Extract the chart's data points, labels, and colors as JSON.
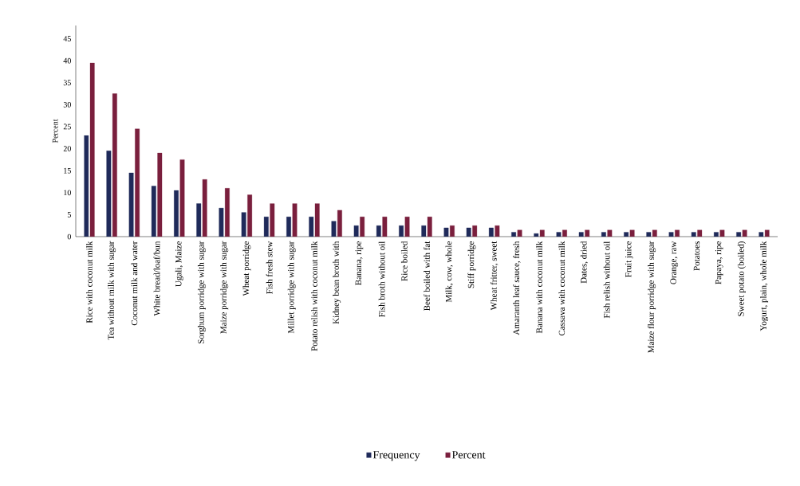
{
  "chart_data": {
    "type": "bar",
    "ylabel": "Percent",
    "categories": [
      "Rice with coconut milk",
      "Tea without milk with sugar",
      "Coconut milk and water",
      "White bread/loaf/bun",
      "Ugali, Maize",
      "Sorghum porridge with sugar",
      "Maize porridge with sugar",
      "Wheat porridge",
      "Fish fresh stew",
      "Millet porridge with sugar",
      "Potato relish with coconut milk",
      "Kidney bean broth with",
      "Banana, ripe",
      "Fish broth without oil",
      "Rice boiled",
      "Beef boiled with fat",
      "Milk, cow, whole",
      "Stiff porridge",
      "Wheat fritter, sweet",
      "Amaranth leaf sauce, fresh",
      "Banana with coconut milk",
      "Cassava with coconut milk",
      "Dates, dried",
      "Fish relish without oil",
      "Fruit juice",
      "Maize flour porridge with sugar",
      "Orange, raw",
      "Potatoes",
      "Papaya, ripe",
      "Sweet potato (boiled)",
      "Yogurt, plain, whole milk"
    ],
    "series": [
      {
        "name": "Frequency",
        "color": "#1f2a5a",
        "values": [
          23,
          19.5,
          14.5,
          11.5,
          10.5,
          7.5,
          6.5,
          5.5,
          4.5,
          4.5,
          4.5,
          3.5,
          2.5,
          2.5,
          2.5,
          2.5,
          2,
          2,
          2,
          1,
          0.7,
          1,
          1,
          1,
          1,
          1,
          1,
          1,
          1,
          1,
          1
        ]
      },
      {
        "name": "Percent",
        "color": "#7a1f3d",
        "values": [
          39.5,
          32.5,
          24.5,
          19,
          17.5,
          13,
          11,
          9.5,
          7.5,
          7.5,
          7.5,
          6,
          4.5,
          4.5,
          4.5,
          4.5,
          2.5,
          2.5,
          2.5,
          1.5,
          1.5,
          1.5,
          1.5,
          1.5,
          1.5,
          1.5,
          1.5,
          1.5,
          1.5,
          1.5,
          1.5
        ]
      }
    ],
    "ylim": [
      0,
      48
    ],
    "yticks": [
      0,
      5,
      10,
      15,
      20,
      25,
      30,
      35,
      40,
      45
    ],
    "legend": "bottom",
    "grid": false
  }
}
